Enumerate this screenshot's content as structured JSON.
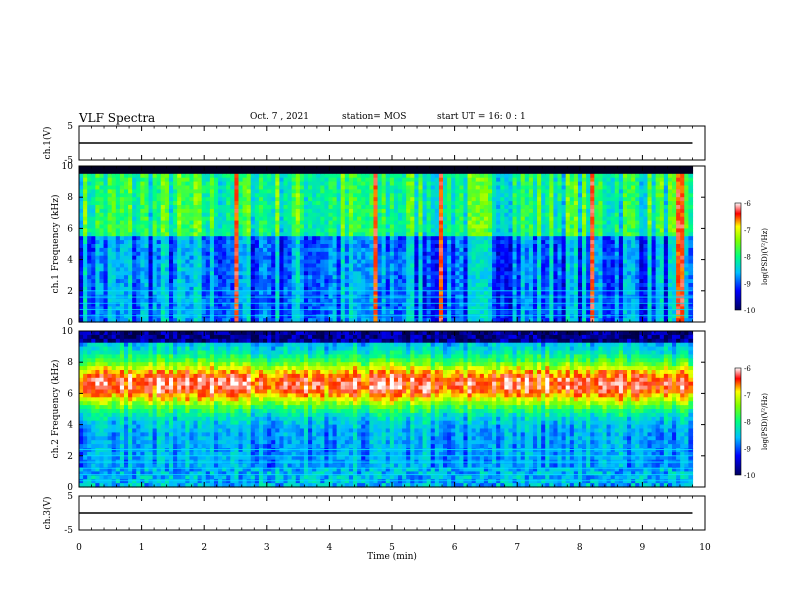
{
  "header": {
    "title": "VLF Spectra",
    "date": "Oct. 7 , 2021",
    "station": "station= MOS",
    "start_time": "start  UT =   16: 0  : 1"
  },
  "chart_data": [
    {
      "type": "line",
      "panel": "ch1-waveform",
      "ylabel": "ch.1(V)",
      "ylim": [
        -5,
        5
      ],
      "y_ticks": [
        "5",
        "-5"
      ],
      "xlim": [
        0,
        10
      ],
      "series": [
        {
          "x": [
            0,
            9.8
          ],
          "y": [
            0,
            0
          ]
        }
      ]
    },
    {
      "type": "heatmap",
      "panel": "ch1-spectrogram",
      "ylabel": "ch.1  Frequency (kHz)",
      "ylim": [
        0,
        10
      ],
      "y_ticks": [
        "0",
        "2",
        "4",
        "6",
        "8",
        "10"
      ],
      "xlim": [
        0,
        10
      ],
      "data_xmax": 9.8,
      "colorbar": {
        "label": "log(PSD)(V²/Hz)",
        "range": [
          -10,
          -6
        ],
        "ticks": [
          "-6",
          "-7",
          "-8",
          "-9",
          "-10"
        ]
      },
      "lines_khz": [
        0.4,
        0.8,
        1.2,
        1.6,
        2.0
      ]
    },
    {
      "type": "heatmap",
      "panel": "ch2-spectrogram",
      "ylabel": "ch.2  Frequency (kHz)",
      "ylim": [
        0,
        10
      ],
      "y_ticks": [
        "0",
        "2",
        "4",
        "6",
        "8",
        "10"
      ],
      "xlim": [
        0,
        10
      ],
      "data_xmax": 9.8,
      "colorbar": {
        "label": "log(PSD)(V²/Hz)",
        "range": [
          -10,
          -6
        ],
        "ticks": [
          "-6",
          "-7",
          "-8",
          "-9",
          "-10"
        ]
      },
      "lines_khz": [
        0.4,
        0.8,
        1.2,
        1.6,
        2.0,
        2.4
      ]
    },
    {
      "type": "line",
      "panel": "ch3-waveform",
      "ylabel": "ch.3(V)",
      "ylim": [
        -5,
        5
      ],
      "y_ticks": [
        "5",
        "-5"
      ],
      "xlim": [
        0,
        10
      ],
      "x_ticks": [
        "0",
        "1",
        "2",
        "3",
        "4",
        "5",
        "6",
        "7",
        "8",
        "9",
        "10"
      ],
      "xlabel": "Time  (min)",
      "series": [
        {
          "x": [
            0,
            9.8
          ],
          "y": [
            0,
            0
          ]
        }
      ]
    }
  ],
  "colors": {
    "background": "#ffffff",
    "axis": "#000000",
    "spectrum_low": "#000000",
    "spectrum_high": "#ff2000"
  }
}
